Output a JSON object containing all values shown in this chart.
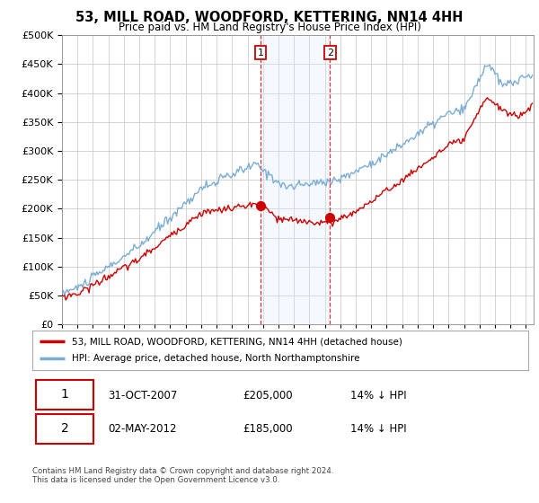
{
  "title": "53, MILL ROAD, WOODFORD, KETTERING, NN14 4HH",
  "subtitle": "Price paid vs. HM Land Registry's House Price Index (HPI)",
  "legend_label_red": "53, MILL ROAD, WOODFORD, KETTERING, NN14 4HH (detached house)",
  "legend_label_blue": "HPI: Average price, detached house, North Northamptonshire",
  "annotation1_date": "31-OCT-2007",
  "annotation1_price": "£205,000",
  "annotation1_hpi": "14% ↓ HPI",
  "annotation2_date": "02-MAY-2012",
  "annotation2_price": "£185,000",
  "annotation2_hpi": "14% ↓ HPI",
  "footer": "Contains HM Land Registry data © Crown copyright and database right 2024.\nThis data is licensed under the Open Government Licence v3.0.",
  "ylim": [
    0,
    500000
  ],
  "yticks": [
    0,
    50000,
    100000,
    150000,
    200000,
    250000,
    300000,
    350000,
    400000,
    450000,
    500000
  ],
  "color_red": "#cc0000",
  "color_blue": "#7aadd4",
  "color_shade": "#ddeeff",
  "background_color": "#ffffff",
  "grid_color": "#cccccc",
  "purchase1_year": 2007.833,
  "purchase1_price": 205000,
  "purchase2_year": 2012.333,
  "purchase2_price": 185000
}
